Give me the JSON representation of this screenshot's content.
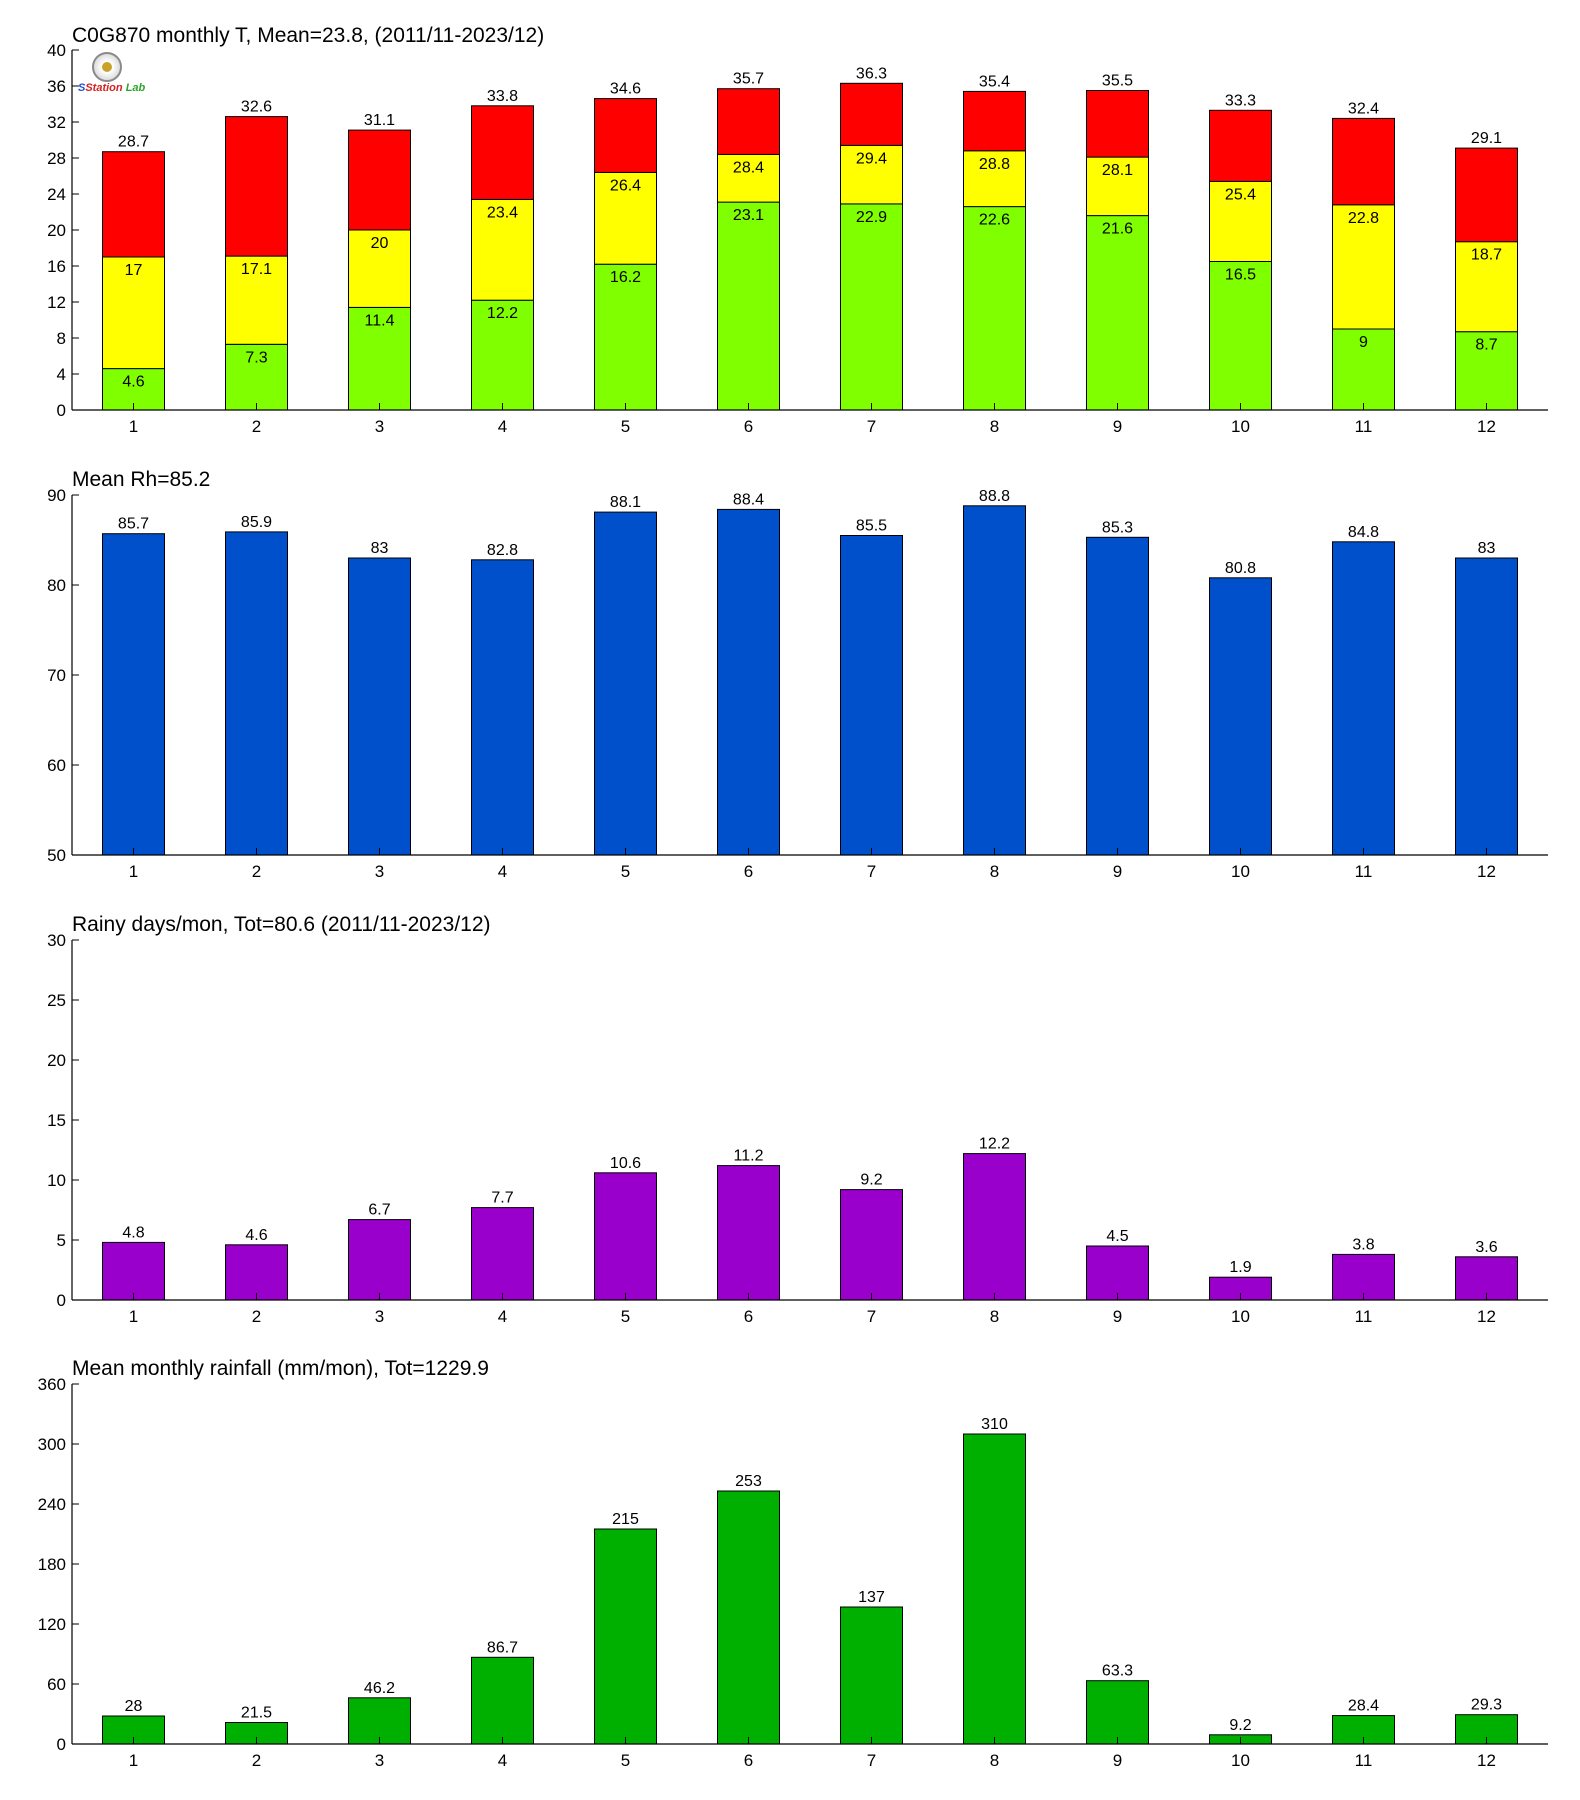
{
  "colors": {
    "temp_max": "#ff0000",
    "temp_mean": "#ffff00",
    "temp_min": "#80ff00",
    "rh": "#0050cc",
    "rainy_days": "#9900cc",
    "rainfall": "#00b000",
    "axis": "#000000"
  },
  "logo": {
    "icon": "seal-logo-icon",
    "text_a": "S",
    "text_b": "Station",
    "text_c": "Lab"
  },
  "chart_data": [
    {
      "type": "bar",
      "subtype": "stacked",
      "title": "C0G870 monthly T, Mean=23.8, (2011/11-2023/12)",
      "categories": [
        "1",
        "2",
        "3",
        "4",
        "5",
        "6",
        "7",
        "8",
        "9",
        "10",
        "11",
        "12"
      ],
      "ylim": [
        0,
        40
      ],
      "yticks": [
        "0",
        "4",
        "8",
        "12",
        "16",
        "20",
        "24",
        "28",
        "32",
        "36",
        "40"
      ],
      "min": [
        4.6,
        7.3,
        11.4,
        12.2,
        16.2,
        23.1,
        22.9,
        22.6,
        21.6,
        16.5,
        9,
        8.7
      ],
      "mean": [
        17,
        17.1,
        20,
        23.4,
        26.4,
        28.4,
        29.4,
        28.8,
        28.1,
        25.4,
        22.8,
        18.7
      ],
      "max": [
        28.7,
        32.6,
        31.1,
        33.8,
        34.6,
        35.7,
        36.3,
        35.4,
        35.5,
        33.3,
        32.4,
        29.1
      ],
      "min_labels": [
        "4.6",
        "7.3",
        "11.4",
        "12.2",
        "16.2",
        "23.1",
        "22.9",
        "22.6",
        "21.6",
        "16.5",
        "9",
        "8.7"
      ],
      "mean_labels": [
        "17",
        "17.1",
        "20",
        "23.4",
        "26.4",
        "28.4",
        "29.4",
        "28.8",
        "28.1",
        "25.4",
        "22.8",
        "18.7"
      ],
      "max_labels": [
        "28.7",
        "32.6",
        "31.1",
        "33.8",
        "34.6",
        "35.7",
        "36.3",
        "35.4",
        "35.5",
        "33.3",
        "32.4",
        "29.1"
      ],
      "grid": false
    },
    {
      "type": "bar",
      "title": "Mean Rh=85.2",
      "categories": [
        "1",
        "2",
        "3",
        "4",
        "5",
        "6",
        "7",
        "8",
        "9",
        "10",
        "11",
        "12"
      ],
      "ylim": [
        50,
        90
      ],
      "yticks": [
        "50",
        "60",
        "70",
        "80",
        "90"
      ],
      "values": [
        85.7,
        85.9,
        83,
        82.8,
        88.1,
        88.4,
        85.5,
        88.8,
        85.3,
        80.8,
        84.8,
        83
      ],
      "labels": [
        "85.7",
        "85.9",
        "83",
        "82.8",
        "88.1",
        "88.4",
        "85.5",
        "88.8",
        "85.3",
        "80.8",
        "84.8",
        "83"
      ],
      "grid": false
    },
    {
      "type": "bar",
      "title": "Rainy days/mon, Tot=80.6 (2011/11-2023/12)",
      "categories": [
        "1",
        "2",
        "3",
        "4",
        "5",
        "6",
        "7",
        "8",
        "9",
        "10",
        "11",
        "12"
      ],
      "ylim": [
        0,
        30
      ],
      "yticks": [
        "0",
        "5",
        "10",
        "15",
        "20",
        "25",
        "30"
      ],
      "values": [
        4.8,
        4.6,
        6.7,
        7.7,
        10.6,
        11.2,
        9.2,
        12.2,
        4.5,
        1.9,
        3.8,
        3.6
      ],
      "labels": [
        "4.8",
        "4.6",
        "6.7",
        "7.7",
        "10.6",
        "11.2",
        "9.2",
        "12.2",
        "4.5",
        "1.9",
        "3.8",
        "3.6"
      ],
      "grid": false
    },
    {
      "type": "bar",
      "title": "Mean monthly rainfall (mm/mon), Tot=1229.9",
      "categories": [
        "1",
        "2",
        "3",
        "4",
        "5",
        "6",
        "7",
        "8",
        "9",
        "10",
        "11",
        "12"
      ],
      "ylim": [
        0,
        360
      ],
      "yticks": [
        "0",
        "60",
        "120",
        "180",
        "240",
        "300",
        "360"
      ],
      "values": [
        28,
        21.5,
        46.2,
        86.7,
        215,
        253,
        137,
        310,
        63.3,
        9.2,
        28.4,
        29.3
      ],
      "labels": [
        "28",
        "21.5",
        "46.2",
        "86.7",
        "215",
        "253",
        "137",
        "310",
        "63.3",
        "9.2",
        "28.4",
        "29.3"
      ],
      "grid": false
    }
  ]
}
